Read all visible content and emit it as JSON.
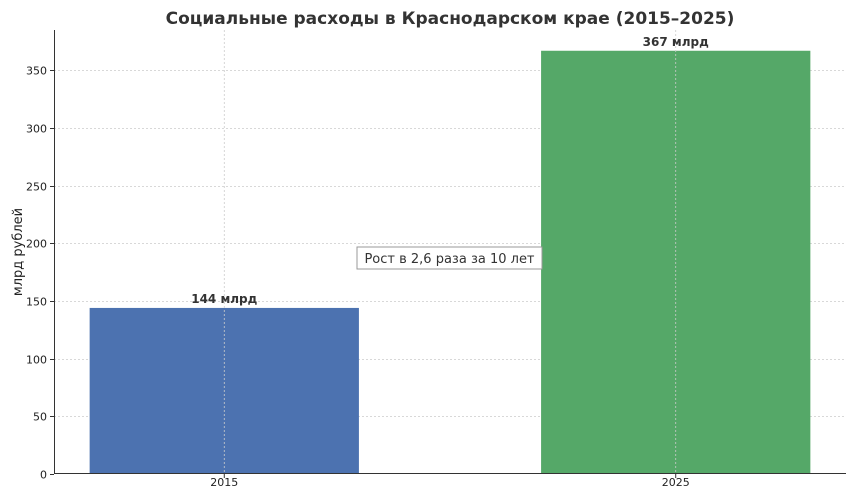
{
  "chart_data": {
    "type": "bar",
    "title": "Социальные расходы в Краснодарском крае (2015–2025)",
    "xlabel": "",
    "ylabel": "млрд рублей",
    "categories": [
      "2015",
      "2025"
    ],
    "values": [
      144,
      367
    ],
    "value_labels": [
      "144 млрд",
      "367 млрд"
    ],
    "colors": [
      "#4c72b0",
      "#55a868"
    ],
    "ylim": [
      0,
      385
    ],
    "yticks": [
      0,
      50,
      100,
      150,
      200,
      250,
      300,
      350
    ],
    "grid": true,
    "annotation": "Рост в 2,6 раза за 10 лет"
  }
}
